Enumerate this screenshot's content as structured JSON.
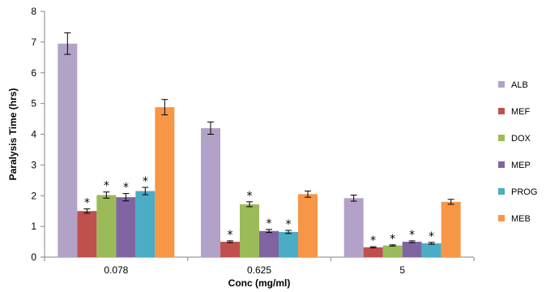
{
  "chart_data": {
    "type": "bar",
    "xlabel": "Conc (mg/ml)",
    "ylabel": "Paralysis Time (hrs)",
    "ylim": [
      0,
      8
    ],
    "yticks": [
      0,
      1,
      2,
      3,
      4,
      5,
      6,
      7,
      8
    ],
    "grid": false,
    "legend": "right",
    "categories": [
      "0.078",
      "0.625",
      "5"
    ],
    "significance_marker": "*",
    "series": [
      {
        "name": "ALB",
        "color": "#b3a2c7",
        "values": [
          6.95,
          4.2,
          1.92
        ],
        "errors": [
          0.35,
          0.2,
          0.1
        ],
        "significant": [
          false,
          false,
          false
        ]
      },
      {
        "name": "MEF",
        "color": "#c0504d",
        "values": [
          1.5,
          0.5,
          0.32
        ],
        "errors": [
          0.07,
          0.03,
          0.02
        ],
        "significant": [
          true,
          true,
          true
        ]
      },
      {
        "name": "DOX",
        "color": "#9bbb59",
        "values": [
          2.02,
          1.72,
          0.38
        ],
        "errors": [
          0.1,
          0.08,
          0.02
        ],
        "significant": [
          true,
          true,
          true
        ]
      },
      {
        "name": "MEP",
        "color": "#8064a2",
        "values": [
          1.95,
          0.85,
          0.5
        ],
        "errors": [
          0.12,
          0.05,
          0.03
        ],
        "significant": [
          true,
          true,
          true
        ]
      },
      {
        "name": "PROG",
        "color": "#4bacc6",
        "values": [
          2.15,
          0.82,
          0.45
        ],
        "errors": [
          0.12,
          0.05,
          0.03
        ],
        "significant": [
          true,
          true,
          true
        ]
      },
      {
        "name": "MEB",
        "color": "#f79646",
        "values": [
          4.88,
          2.05,
          1.8
        ],
        "errors": [
          0.25,
          0.1,
          0.08
        ],
        "significant": [
          false,
          false,
          false
        ]
      }
    ]
  }
}
